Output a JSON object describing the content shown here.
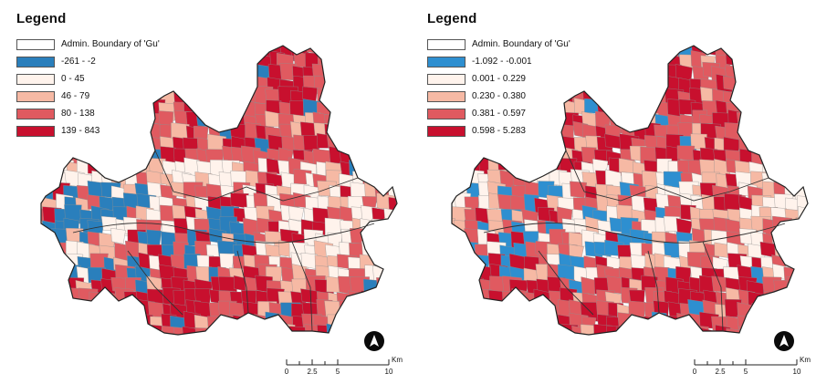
{
  "maps": [
    {
      "legend": {
        "title": "Legend",
        "items": [
          {
            "label": "Admin. Boundary of 'Gu'",
            "color": "#ffffff"
          },
          {
            "label": "-261 - -2",
            "color": "#2a7fbc"
          },
          {
            "label": "0 - 45",
            "color": "#fff3ec"
          },
          {
            "label": "46 - 79",
            "color": "#f6b9a4"
          },
          {
            "label": "80 - 138",
            "color": "#e05a60"
          },
          {
            "label": "139 - 843",
            "color": "#c8102e"
          }
        ]
      },
      "scale": {
        "ticks": [
          "0",
          "2.5",
          "5",
          "10"
        ],
        "unit": "Km"
      }
    },
    {
      "legend": {
        "title": "Legend",
        "items": [
          {
            "label": "Admin. Boundary of 'Gu'",
            "color": "#ffffff"
          },
          {
            "label": "-1.092 - -0.001",
            "color": "#2e8fd0"
          },
          {
            "label": "0.001 - 0.229",
            "color": "#fff3ec"
          },
          {
            "label": "0.230 - 0.380",
            "color": "#f6b9a4"
          },
          {
            "label": "0.381 - 0.597",
            "color": "#e05a60"
          },
          {
            "label": "0.598 - 5.283",
            "color": "#c8102e"
          }
        ]
      },
      "scale": {
        "ticks": [
          "0",
          "2.5",
          "5",
          "10"
        ],
        "unit": "Km"
      }
    }
  ]
}
